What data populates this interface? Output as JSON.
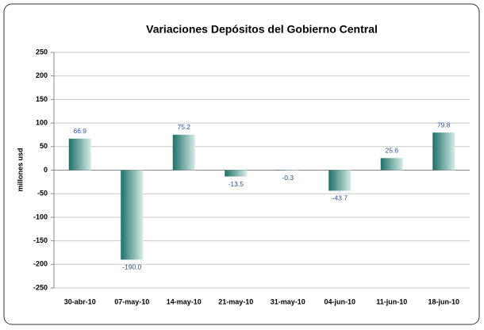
{
  "chart_data": {
    "type": "bar",
    "title": "Variaciones Depósitos del Gobierno Central",
    "ylabel": "millones usd",
    "categories": [
      "30-abr-10",
      "07-may-10",
      "14-may-10",
      "21-may-10",
      "31-may-10",
      "04-jun-10",
      "11-jun-10",
      "18-jun-10"
    ],
    "values": [
      66.9,
      -190,
      75.2,
      -13.5,
      -0.3,
      -43.7,
      25.6,
      79.8
    ],
    "value_labels": [
      "66.9",
      "-190.0",
      "75.2",
      "-13.5",
      "-0.3",
      "-43.7",
      "25.6",
      "79.8"
    ],
    "color": "#1f7068",
    "ylim": [
      -250,
      250
    ],
    "yticks": [
      -250,
      -200,
      -150,
      -100,
      -50,
      0,
      50,
      100,
      150,
      200,
      250
    ],
    "grid": true
  }
}
